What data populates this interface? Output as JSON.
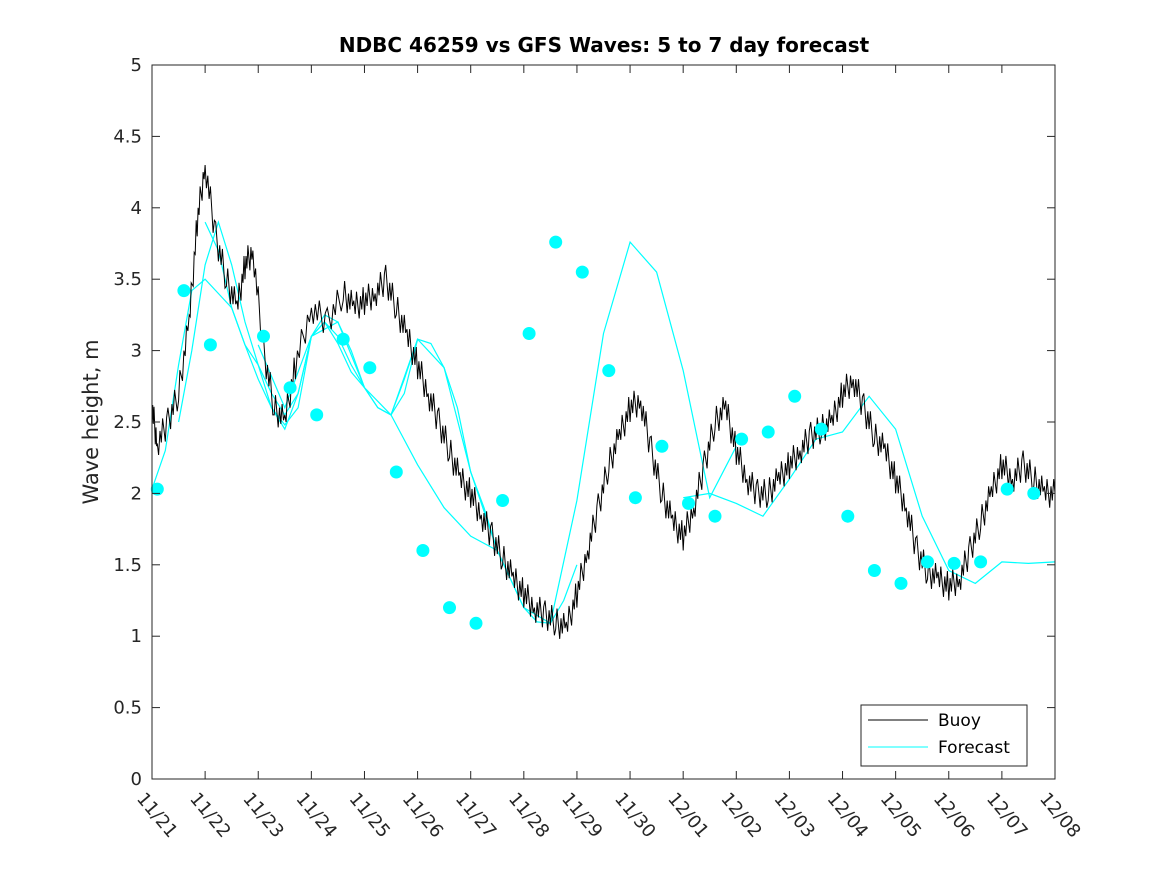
{
  "chart_data": {
    "type": "line",
    "title": "NDBC 46259 vs GFS Waves: 5 to 7 day forecast",
    "xlabel": "",
    "ylabel": "Wave height, m",
    "ylim": [
      0,
      5
    ],
    "yticks": [
      0,
      0.5,
      1,
      1.5,
      2,
      2.5,
      3,
      3.5,
      4,
      4.5,
      5
    ],
    "ytick_labels": [
      "0",
      "0.5",
      "1",
      "1.5",
      "2",
      "2.5",
      "3",
      "3.5",
      "4",
      "4.5",
      "5"
    ],
    "xlim_days": [
      0,
      17
    ],
    "xticks_days": [
      0,
      1,
      2,
      3,
      4,
      5,
      6,
      7,
      8,
      9,
      10,
      11,
      12,
      13,
      14,
      15,
      16,
      17
    ],
    "xtick_labels": [
      "11/21",
      "11/22",
      "11/23",
      "11/24",
      "11/25",
      "11/26",
      "11/27",
      "11/28",
      "11/29",
      "11/30",
      "12/01",
      "12/02",
      "12/03",
      "12/04",
      "12/05",
      "12/06",
      "12/07",
      "12/08"
    ],
    "legend": {
      "position": "bottom-right",
      "entries": [
        "Buoy",
        "Forecast"
      ]
    },
    "colors": {
      "buoy": "#000000",
      "forecast": "#00ffff",
      "axis": "#262626"
    },
    "buoy": {
      "name": "Buoy",
      "x": [
        0,
        0.1,
        0.3,
        0.5,
        0.7,
        0.85,
        1.0,
        1.2,
        1.4,
        1.6,
        1.75,
        1.9,
        2.1,
        2.3,
        2.5,
        2.7,
        3.0,
        3.3,
        3.6,
        3.8,
        4.0,
        4.2,
        4.4,
        4.6,
        4.8,
        5.0,
        5.2,
        5.4,
        5.6,
        5.8,
        6.0,
        6.2,
        6.4,
        6.6,
        6.8,
        7.0,
        7.2,
        7.4,
        7.6,
        7.8,
        8.0,
        8.2,
        8.4,
        8.6,
        8.8,
        9.0,
        9.2,
        9.4,
        9.6,
        9.8,
        10.0,
        10.2,
        10.4,
        10.6,
        10.8,
        11.0,
        11.2,
        11.4,
        11.6,
        11.8,
        12.0,
        12.2,
        12.4,
        12.6,
        12.8,
        13.0,
        13.2,
        13.4,
        13.6,
        13.8,
        14.0,
        14.2,
        14.4,
        14.6,
        14.8,
        15.0,
        15.2,
        15.4,
        15.6,
        15.8,
        16.0,
        16.2,
        16.4,
        16.6,
        16.8,
        17.0
      ],
      "y": [
        2.6,
        2.35,
        2.5,
        2.7,
        3.2,
        3.9,
        4.3,
        3.8,
        3.5,
        3.3,
        3.6,
        3.7,
        3.0,
        2.6,
        2.5,
        2.9,
        3.3,
        3.2,
        3.4,
        3.3,
        3.35,
        3.4,
        3.5,
        3.3,
        3.1,
        2.9,
        2.7,
        2.5,
        2.3,
        2.1,
        2.0,
        1.85,
        1.7,
        1.55,
        1.4,
        1.3,
        1.2,
        1.15,
        1.1,
        1.05,
        1.3,
        1.6,
        1.9,
        2.2,
        2.4,
        2.6,
        2.65,
        2.3,
        2.0,
        1.8,
        1.7,
        1.9,
        2.2,
        2.5,
        2.6,
        2.3,
        2.1,
        2.0,
        2.0,
        2.1,
        2.2,
        2.3,
        2.4,
        2.45,
        2.5,
        2.7,
        2.8,
        2.6,
        2.4,
        2.3,
        2.1,
        1.9,
        1.6,
        1.45,
        1.4,
        1.35,
        1.4,
        1.6,
        1.8,
        2.0,
        2.2,
        2.1,
        2.2,
        2.1,
        2.0,
        2.0
      ]
    },
    "forecast": {
      "name": "Forecast",
      "runs": [
        {
          "x": [
            0.0,
            0.25,
            0.5,
            0.75,
            1.0,
            1.25,
            1.5,
            1.75,
            2.0,
            2.25,
            2.5,
            2.75,
            3.0,
            3.25,
            3.5,
            3.75,
            4.0
          ],
          "y": [
            2.03,
            2.3,
            2.9,
            3.42,
            3.5,
            3.4,
            3.3,
            3.04,
            2.8,
            2.6,
            2.48,
            2.6,
            3.1,
            3.2,
            3.1,
            2.9,
            2.74
          ]
        },
        {
          "x": [
            0.5,
            0.75,
            1.0,
            1.25,
            1.5,
            1.75,
            2.0,
            2.25,
            2.5,
            2.75,
            3.0,
            3.25,
            3.5,
            3.75,
            4.0,
            4.25,
            4.5,
            4.75,
            5.0
          ],
          "y": [
            2.5,
            3.0,
            3.6,
            3.9,
            3.6,
            3.2,
            2.9,
            2.6,
            2.45,
            2.7,
            3.1,
            3.25,
            3.2,
            3.0,
            2.74,
            2.6,
            2.55,
            2.8,
            3.08
          ]
        },
        {
          "x": [
            1.0,
            1.25,
            1.5,
            1.75,
            2.0,
            2.25,
            2.5,
            2.75,
            3.0,
            3.25,
            3.5,
            3.75,
            4.0,
            4.25,
            4.5,
            4.75,
            5.0,
            5.25,
            5.5,
            5.75,
            6.0,
            6.25,
            6.5,
            6.75,
            7.0,
            7.25,
            7.5,
            7.75,
            8.0
          ],
          "y": [
            3.9,
            3.7,
            3.3,
            3.04,
            2.9,
            2.7,
            2.55,
            2.7,
            3.1,
            3.2,
            3.05,
            2.85,
            2.74,
            2.6,
            2.55,
            2.7,
            3.08,
            3.05,
            2.88,
            2.6,
            2.15,
            1.9,
            1.6,
            1.4,
            1.2,
            1.1,
            1.09,
            1.25,
            1.5
          ]
        },
        {
          "x": [
            2.0,
            2.5,
            3.0,
            3.5,
            4.0,
            4.5,
            5.0,
            5.5,
            6.0,
            6.5,
            7.0,
            7.5,
            8.0,
            8.5,
            9.0,
            9.5,
            10.0,
            10.5,
            11.0
          ],
          "y": [
            3.04,
            2.6,
            3.1,
            3.2,
            2.74,
            2.55,
            3.08,
            2.88,
            2.15,
            1.6,
            1.2,
            1.09,
            1.95,
            3.12,
            3.76,
            3.55,
            2.86,
            1.97,
            2.33
          ]
        },
        {
          "x": [
            4.5,
            5.0,
            5.5,
            6.0,
            6.5
          ],
          "y": [
            2.55,
            2.2,
            1.9,
            1.7,
            1.6
          ]
        },
        {
          "x": [
            10.0,
            10.5,
            11.0,
            11.5,
            12.0,
            12.5,
            13.0,
            13.5,
            14.0,
            14.5,
            15.0,
            15.5,
            16.0,
            16.5,
            17.0
          ],
          "y": [
            1.97,
            2.0,
            1.93,
            1.84,
            2.1,
            2.38,
            2.43,
            2.68,
            2.45,
            1.84,
            1.46,
            1.37,
            1.52,
            1.51,
            1.52
          ]
        }
      ],
      "markers": {
        "x": [
          0.1,
          0.6,
          1.1,
          2.1,
          2.6,
          3.1,
          3.6,
          4.1,
          4.6,
          5.1,
          5.6,
          6.1,
          6.6,
          7.1,
          7.6,
          8.1,
          8.6,
          9.1,
          9.6,
          10.1,
          10.6,
          11.1,
          11.6,
          12.1,
          12.6,
          13.1,
          13.6,
          14.1,
          14.6,
          15.1,
          15.6,
          16.1,
          16.6
        ],
        "y": [
          2.03,
          3.42,
          3.04,
          3.1,
          2.74,
          2.55,
          3.08,
          2.88,
          2.15,
          1.6,
          1.2,
          1.09,
          1.95,
          3.12,
          3.76,
          3.55,
          2.86,
          1.97,
          2.33,
          1.93,
          1.84,
          2.38,
          2.43,
          2.68,
          2.45,
          1.84,
          1.46,
          1.37,
          1.52,
          1.51,
          1.52,
          2.03,
          2.0
        ]
      }
    }
  }
}
